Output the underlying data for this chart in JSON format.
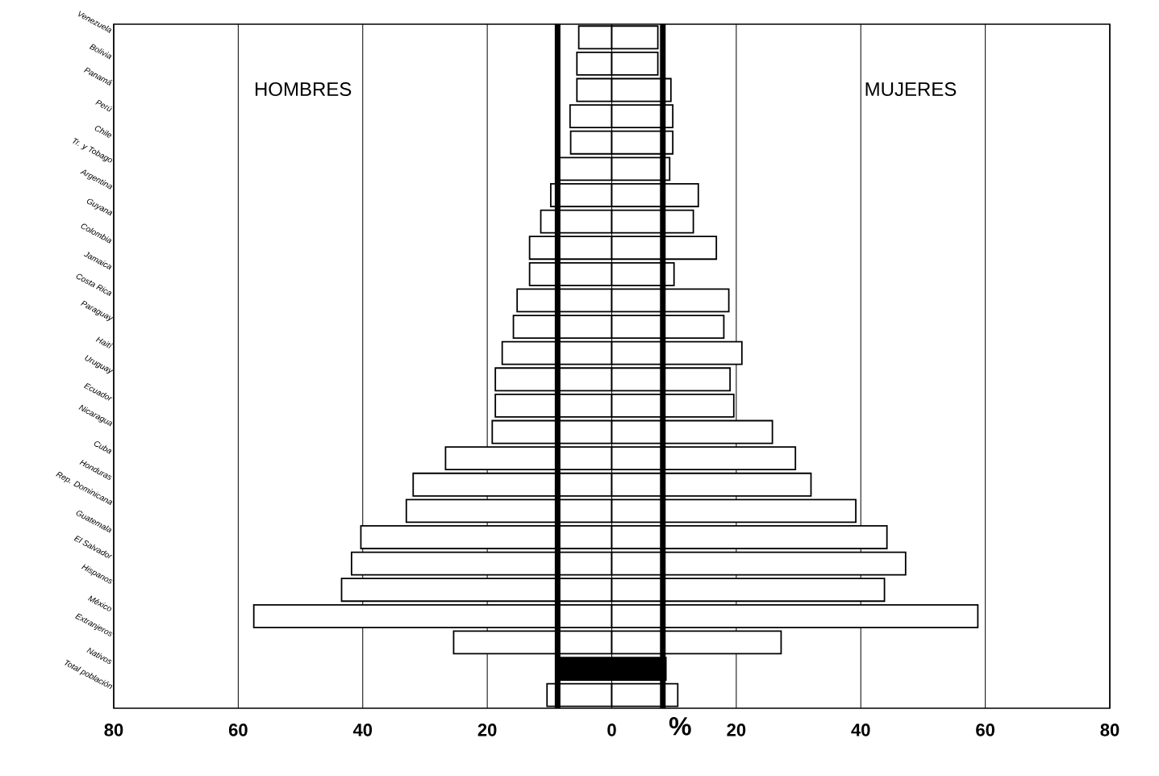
{
  "chart_data": {
    "type": "bar",
    "orientation": "horizontal",
    "stacked": true,
    "categories": [
      "Venezuela",
      "Bolivia",
      "Panamá",
      "Perú",
      "Chile",
      "Tr. y Tobago",
      "Argentina",
      "Guyana",
      "Colombia",
      "Jamaica",
      "Costa Rica",
      "Paraguay",
      "Haití",
      "Uruguay",
      "Ecuador",
      "Nicaragua",
      "Cuba",
      "Honduras",
      "Rep. Dominicana",
      "Guatemala",
      "El Salvador",
      "Hispanos",
      "México",
      "Extranjeros",
      "Nativos",
      "Total población"
    ],
    "series": [
      {
        "values": [
          -5.3,
          -5.6,
          -5.6,
          -6.7,
          -6.6,
          -8.7,
          -9.8,
          -11.4,
          -13.2,
          -13.2,
          -15.2,
          -15.8,
          -17.6,
          -18.7,
          -18.7,
          -19.2,
          -26.7,
          -31.9,
          -33.0,
          -40.3,
          -41.8,
          -43.4,
          -57.5,
          -25.4,
          -8.7,
          -10.4
        ],
        "colors": [
          "#ffffff",
          "#ffffff",
          "#ffffff",
          "#ffffff",
          "#ffffff",
          "#ffffff",
          "#ffffff",
          "#ffffff",
          "#ffffff",
          "#ffffff",
          "#ffffff",
          "#ffffff",
          "#ffffff",
          "#ffffff",
          "#ffffff",
          "#ffffff",
          "#ffffff",
          "#ffffff",
          "#ffffff",
          "#ffffff",
          "#ffffff",
          "#ffffff",
          "#ffffff",
          "#ffffff",
          "#000000",
          "#ffffff"
        ]
      },
      {
        "values": [
          7.4,
          7.4,
          9.5,
          9.8,
          9.8,
          9.3,
          13.9,
          13.1,
          16.8,
          10.0,
          18.8,
          18.0,
          20.9,
          19.0,
          19.6,
          25.8,
          29.5,
          32.0,
          39.2,
          44.2,
          47.2,
          43.8,
          58.8,
          27.2,
          8.7,
          10.6
        ],
        "colors": [
          "#ffffff",
          "#ffffff",
          "#ffffff",
          "#ffffff",
          "#ffffff",
          "#ffffff",
          "#ffffff",
          "#ffffff",
          "#ffffff",
          "#ffffff",
          "#ffffff",
          "#ffffff",
          "#ffffff",
          "#ffffff",
          "#ffffff",
          "#ffffff",
          "#ffffff",
          "#ffffff",
          "#ffffff",
          "#ffffff",
          "#ffffff",
          "#ffffff",
          "#ffffff",
          "#ffffff",
          "#000000",
          "#ffffff"
        ]
      }
    ],
    "annotations": [
      "HOMBRES",
      "MUJERES"
    ],
    "xlim": [
      -80,
      80
    ],
    "xticks": [
      {
        "value": -80,
        "label": "80"
      },
      {
        "value": -60,
        "label": "60"
      },
      {
        "value": -40,
        "label": "40"
      },
      {
        "value": -20,
        "label": "20"
      },
      0,
      20,
      40,
      60,
      80
    ],
    "xlabel": "%",
    "grid": "x",
    "ref_lines": [
      {
        "axis": "x",
        "value": -8.7,
        "color": "#000000"
      },
      {
        "axis": "x",
        "value": 8.2,
        "color": "#000000"
      }
    ]
  }
}
